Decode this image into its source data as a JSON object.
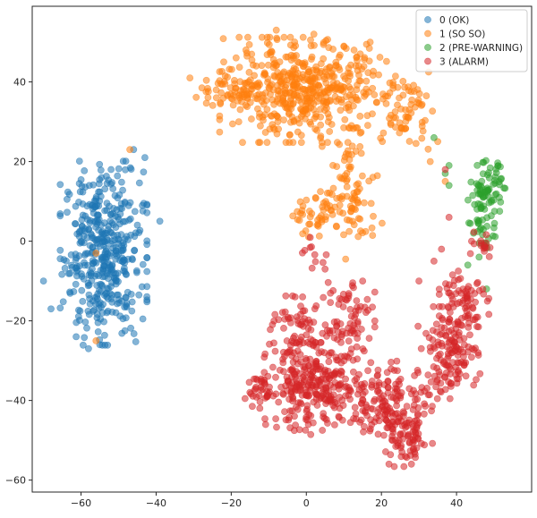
{
  "chart_data": {
    "type": "scatter",
    "title": "",
    "xlabel": "",
    "ylabel": "",
    "xlim": [
      -73,
      60
    ],
    "ylim": [
      -63,
      59
    ],
    "xticks": [
      -60,
      -40,
      -20,
      0,
      20,
      40
    ],
    "yticks": [
      -60,
      -40,
      -20,
      0,
      20,
      40
    ],
    "x_tick_labels": [
      "−60",
      "−40",
      "−20",
      "0",
      "20",
      "40"
    ],
    "y_tick_labels": [
      "−60",
      "−40",
      "−20",
      "0",
      "20",
      "40"
    ],
    "grid": false,
    "legend_placement": "top-right",
    "marker_alpha": 0.55,
    "series": [
      {
        "name": "0 (OK)",
        "color": "#1f77b4",
        "clusters": [
          {
            "center": [
              -54,
              -3
            ],
            "spread": [
              7,
              14
            ],
            "count": 430
          }
        ],
        "points": [
          [
            -46,
            23
          ],
          [
            -43,
            21
          ],
          [
            -52,
            18
          ],
          [
            -68,
            -17
          ],
          [
            -70,
            -10
          ],
          [
            -39,
            5
          ],
          [
            -58,
            -27
          ],
          [
            -55,
            -26
          ]
        ]
      },
      {
        "name": "1 (SO SO)",
        "color": "#ff7f0e",
        "clusters": [
          {
            "center": [
              0,
              38
            ],
            "spread": [
              14,
              8
            ],
            "count": 480
          },
          {
            "center": [
              -18,
              38
            ],
            "spread": [
              7,
              3
            ],
            "count": 60
          },
          {
            "center": [
              12,
              12
            ],
            "spread": [
              5,
              10
            ],
            "count": 90
          },
          {
            "center": [
              3,
              6
            ],
            "spread": [
              4,
              3
            ],
            "count": 40
          },
          {
            "center": [
              27,
              33
            ],
            "spread": [
              4,
              6
            ],
            "count": 60
          }
        ],
        "points": [
          [
            -31,
            41
          ],
          [
            -24,
            38
          ],
          [
            -22,
            45
          ],
          [
            -8,
            53
          ],
          [
            2,
            52
          ],
          [
            10,
            49
          ],
          [
            17,
            50
          ],
          [
            -18,
            30
          ],
          [
            -3,
            40
          ],
          [
            33,
            20
          ],
          [
            37,
            15
          ],
          [
            35,
            25
          ],
          [
            -56,
            -25
          ],
          [
            -56,
            -3
          ],
          [
            -47,
            23
          ]
        ]
      },
      {
        "name": "2 (PRE-WARNING)",
        "color": "#2ca02c",
        "clusters": [
          {
            "center": [
              48,
              12
            ],
            "spread": [
              3,
              5
            ],
            "count": 80
          },
          {
            "center": [
              47,
              3
            ],
            "spread": [
              2,
              3
            ],
            "count": 20
          }
        ],
        "points": [
          [
            34,
            26
          ],
          [
            38,
            19
          ],
          [
            37,
            17
          ],
          [
            38,
            14
          ],
          [
            43,
            -6
          ],
          [
            46,
            -4
          ],
          [
            48,
            -12
          ]
        ]
      },
      {
        "name": "3 (ALARM)",
        "color": "#d62728",
        "clusters": [
          {
            "center": [
              2,
              -37
            ],
            "spread": [
              8,
              7
            ],
            "count": 260
          },
          {
            "center": [
              22,
              -40
            ],
            "spread": [
              7,
              6
            ],
            "count": 150
          },
          {
            "center": [
              27,
              -50
            ],
            "spread": [
              4,
              4
            ],
            "count": 70
          },
          {
            "center": [
              38,
              -28
            ],
            "spread": [
              5,
              7
            ],
            "count": 140
          },
          {
            "center": [
              42,
              -14
            ],
            "spread": [
              4,
              5
            ],
            "count": 70
          },
          {
            "center": [
              10,
              -20
            ],
            "spread": [
              5,
              8
            ],
            "count": 80
          },
          {
            "center": [
              -3,
              -22
            ],
            "spread": [
              5,
              5
            ],
            "count": 60
          },
          {
            "center": [
              -10,
              -38
            ],
            "spread": [
              4,
              4
            ],
            "count": 40
          },
          {
            "center": [
              47,
              -1
            ],
            "spread": [
              2,
              2
            ],
            "count": 15
          },
          {
            "center": [
              2,
              -4
            ],
            "spread": [
              2,
              3
            ],
            "count": 10
          }
        ],
        "points": [
          [
            22,
            -56
          ],
          [
            28,
            -56
          ],
          [
            -15,
            -38
          ],
          [
            -12,
            -35
          ],
          [
            30,
            -10
          ],
          [
            34,
            -5
          ],
          [
            36,
            -2
          ],
          [
            -1,
            -14
          ],
          [
            -3,
            -14
          ],
          [
            37,
            18
          ],
          [
            38,
            6
          ],
          [
            44,
            0
          ],
          [
            5,
            -7
          ],
          [
            15,
            -10
          ]
        ]
      }
    ]
  }
}
